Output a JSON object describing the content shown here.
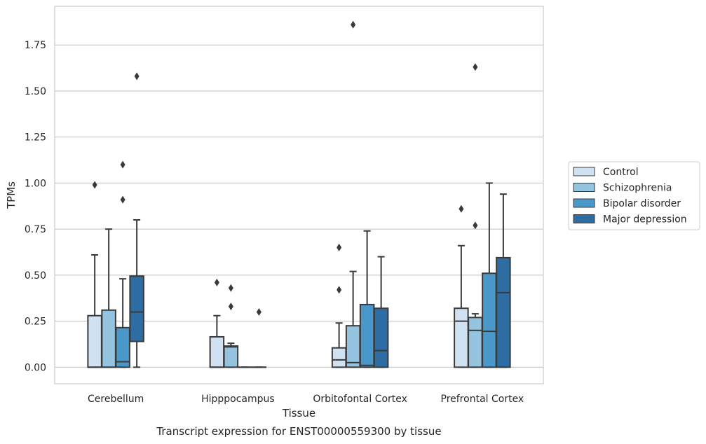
{
  "chart_data": {
    "type": "box",
    "title": "",
    "caption": "Transcript expression for ENST00000559300 by tissue",
    "xlabel": "Tissue",
    "ylabel": "TPMs",
    "ylim": [
      -0.09,
      1.96
    ],
    "yticks": [
      "0.00",
      "0.25",
      "0.50",
      "0.75",
      "1.00",
      "1.25",
      "1.50",
      "1.75"
    ],
    "grid": true,
    "legend_position": "right",
    "categories": [
      "Cerebellum",
      "Hipppocampus",
      "Orbitofontal Cortex",
      "Prefrontal Cortex"
    ],
    "series": [
      {
        "name": "Control",
        "color": "#d0e1f2",
        "boxes": [
          {
            "whisker_low": 0.0,
            "q1": 0.0,
            "median": 0.0,
            "q3": 0.28,
            "whisker_high": 0.61,
            "outliers": [
              0.99
            ]
          },
          {
            "whisker_low": 0.0,
            "q1": 0.0,
            "median": 0.0,
            "q3": 0.165,
            "whisker_high": 0.28,
            "outliers": [
              0.46
            ]
          },
          {
            "whisker_low": 0.0,
            "q1": 0.0,
            "median": 0.04,
            "q3": 0.105,
            "whisker_high": 0.24,
            "outliers": [
              0.42,
              0.65
            ]
          },
          {
            "whisker_low": 0.0,
            "q1": 0.0,
            "median": 0.25,
            "q3": 0.32,
            "whisker_high": 0.66,
            "outliers": [
              0.86
            ]
          }
        ]
      },
      {
        "name": "Schizophrenia",
        "color": "#94c4df",
        "boxes": [
          {
            "whisker_low": 0.0,
            "q1": 0.0,
            "median": 0.0,
            "q3": 0.31,
            "whisker_high": 0.75,
            "outliers": []
          },
          {
            "whisker_low": 0.0,
            "q1": 0.0,
            "median": 0.11,
            "q3": 0.115,
            "whisker_high": 0.13,
            "outliers": [
              0.33,
              0.43
            ]
          },
          {
            "whisker_low": 0.0,
            "q1": 0.0,
            "median": 0.025,
            "q3": 0.225,
            "whisker_high": 0.52,
            "outliers": [
              1.86
            ]
          },
          {
            "whisker_low": 0.0,
            "q1": 0.0,
            "median": 0.2,
            "q3": 0.27,
            "whisker_high": 0.29,
            "outliers": [
              0.77,
              1.63
            ]
          }
        ]
      },
      {
        "name": "Bipolar disorder",
        "color": "#4a98c9",
        "boxes": [
          {
            "whisker_low": 0.0,
            "q1": 0.0,
            "median": 0.03,
            "q3": 0.215,
            "whisker_high": 0.48,
            "outliers": [
              0.91,
              1.1
            ]
          },
          {
            "whisker_low": 0.0,
            "q1": 0.0,
            "median": 0.0,
            "q3": 0.0,
            "whisker_high": 0.0,
            "outliers": []
          },
          {
            "whisker_low": 0.0,
            "q1": 0.0,
            "median": 0.01,
            "q3": 0.34,
            "whisker_high": 0.74,
            "outliers": []
          },
          {
            "whisker_low": 0.0,
            "q1": 0.0,
            "median": 0.195,
            "q3": 0.51,
            "whisker_high": 1.0,
            "outliers": []
          }
        ]
      },
      {
        "name": "Major depression",
        "color": "#2e6ca4",
        "boxes": [
          {
            "whisker_low": 0.0,
            "q1": 0.14,
            "median": 0.3,
            "q3": 0.495,
            "whisker_high": 0.8,
            "outliers": [
              1.58
            ]
          },
          {
            "whisker_low": 0.0,
            "q1": 0.0,
            "median": 0.0,
            "q3": 0.0,
            "whisker_high": 0.0,
            "outliers": [
              0.3
            ]
          },
          {
            "whisker_low": 0.0,
            "q1": 0.0,
            "median": 0.09,
            "q3": 0.32,
            "whisker_high": 0.6,
            "outliers": []
          },
          {
            "whisker_low": 0.0,
            "q1": 0.0,
            "median": 0.405,
            "q3": 0.595,
            "whisker_high": 0.94,
            "outliers": []
          }
        ]
      }
    ]
  }
}
